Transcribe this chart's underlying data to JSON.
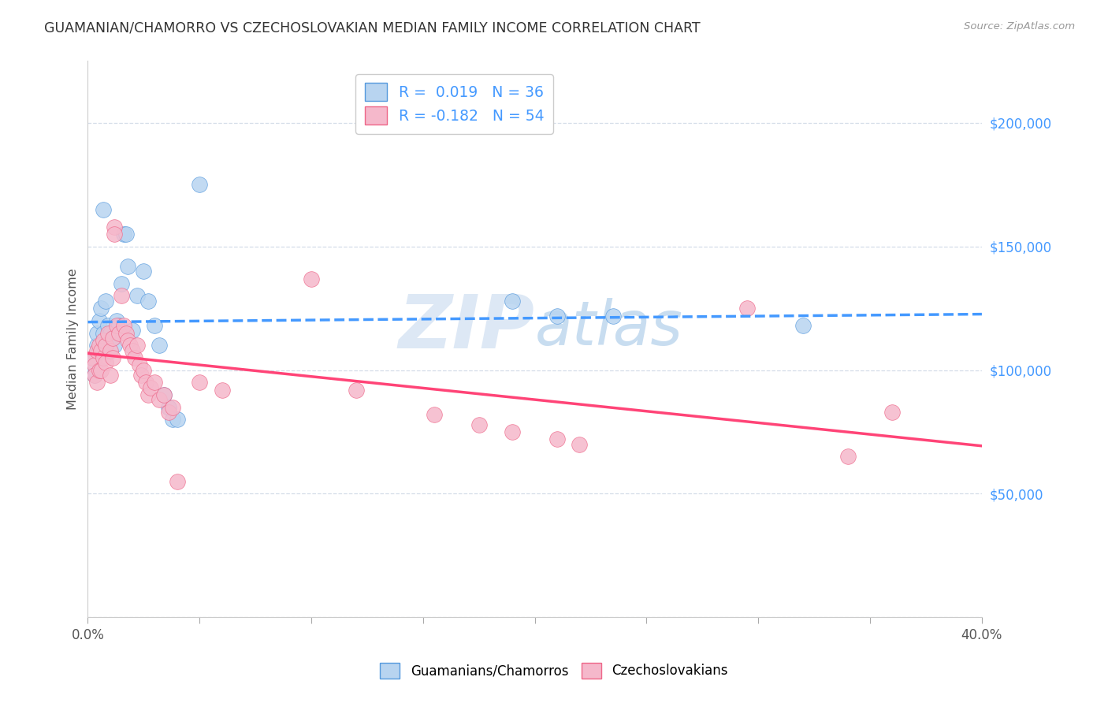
{
  "title": "GUAMANIAN/CHAMORRO VS CZECHOSLOVAKIAN MEDIAN FAMILY INCOME CORRELATION CHART",
  "source": "Source: ZipAtlas.com",
  "ylabel": "Median Family Income",
  "xlim": [
    0.0,
    0.4
  ],
  "ylim": [
    0,
    225000
  ],
  "blue_R": 0.019,
  "blue_N": 36,
  "pink_R": -0.182,
  "pink_N": 54,
  "blue_color": "#b8d4f0",
  "pink_color": "#f5b8cb",
  "blue_edge_color": "#5599dd",
  "pink_edge_color": "#ee6688",
  "blue_line_color": "#4499ff",
  "pink_line_color": "#ff4477",
  "background_color": "#ffffff",
  "grid_color": "#d5dde8",
  "title_fontsize": 12.5,
  "blue_x": [
    0.002,
    0.003,
    0.003,
    0.004,
    0.004,
    0.005,
    0.005,
    0.006,
    0.007,
    0.007,
    0.008,
    0.009,
    0.01,
    0.011,
    0.012,
    0.013,
    0.014,
    0.015,
    0.016,
    0.017,
    0.018,
    0.02,
    0.022,
    0.025,
    0.027,
    0.03,
    0.032,
    0.034,
    0.036,
    0.038,
    0.04,
    0.05,
    0.19,
    0.21,
    0.235,
    0.32
  ],
  "blue_y": [
    100000,
    105000,
    98000,
    110000,
    115000,
    108000,
    120000,
    125000,
    165000,
    115000,
    128000,
    118000,
    115000,
    113000,
    110000,
    120000,
    118000,
    135000,
    155000,
    155000,
    142000,
    116000,
    130000,
    140000,
    128000,
    118000,
    110000,
    90000,
    85000,
    80000,
    80000,
    175000,
    128000,
    122000,
    122000,
    118000
  ],
  "pink_x": [
    0.002,
    0.003,
    0.003,
    0.004,
    0.004,
    0.005,
    0.005,
    0.006,
    0.006,
    0.007,
    0.007,
    0.008,
    0.008,
    0.009,
    0.01,
    0.01,
    0.011,
    0.011,
    0.012,
    0.012,
    0.013,
    0.014,
    0.015,
    0.016,
    0.017,
    0.018,
    0.019,
    0.02,
    0.021,
    0.022,
    0.023,
    0.024,
    0.025,
    0.026,
    0.027,
    0.028,
    0.03,
    0.032,
    0.034,
    0.036,
    0.038,
    0.04,
    0.05,
    0.06,
    0.1,
    0.12,
    0.155,
    0.175,
    0.19,
    0.21,
    0.22,
    0.295,
    0.34,
    0.36
  ],
  "pink_y": [
    105000,
    102000,
    98000,
    108000,
    95000,
    110000,
    100000,
    108000,
    100000,
    112000,
    105000,
    110000,
    103000,
    115000,
    108000,
    98000,
    113000,
    105000,
    158000,
    155000,
    118000,
    115000,
    130000,
    118000,
    115000,
    112000,
    110000,
    108000,
    105000,
    110000,
    102000,
    98000,
    100000,
    95000,
    90000,
    93000,
    95000,
    88000,
    90000,
    83000,
    85000,
    55000,
    95000,
    92000,
    137000,
    92000,
    82000,
    78000,
    75000,
    72000,
    70000,
    125000,
    65000,
    83000
  ],
  "ytick_positions": [
    0,
    50000,
    100000,
    150000,
    200000
  ],
  "ytick_labels": [
    "",
    "$50,000",
    "$100,000",
    "$150,000",
    "$200,000"
  ],
  "xticks": [
    0.0,
    0.05,
    0.1,
    0.15,
    0.2,
    0.25,
    0.3,
    0.35,
    0.4
  ]
}
